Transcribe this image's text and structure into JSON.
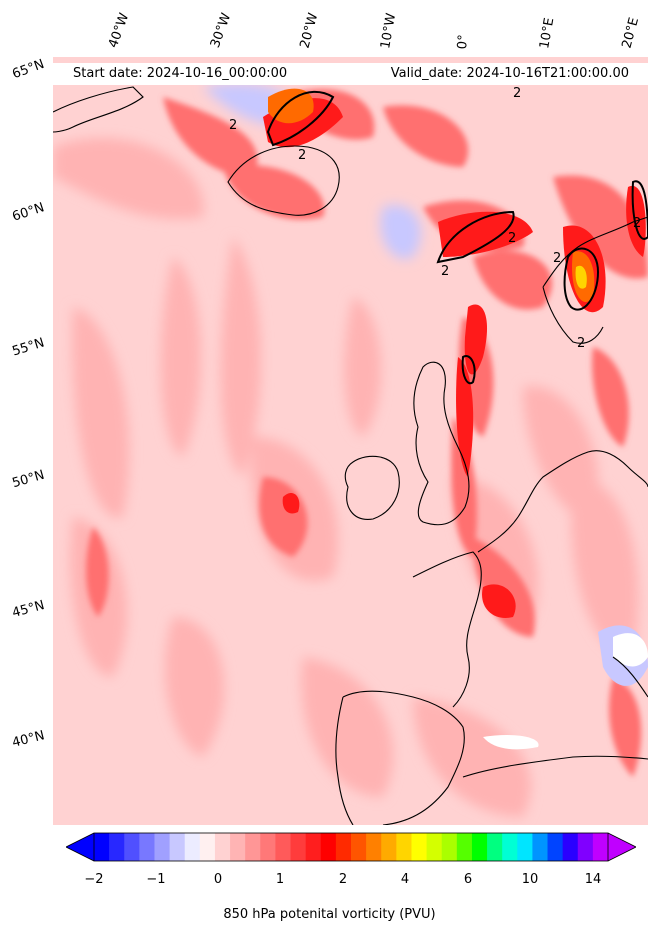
{
  "map": {
    "title_left": "Start date: 2024-10-16_00:00:00",
    "title_right": "Valid_date: 2024-10-16T21:00:00.00",
    "longitude_labels": [
      "40°W",
      "30°W",
      "20°W",
      "10°W",
      "0°",
      "10°E",
      "20°E"
    ],
    "latitude_labels": [
      "65°N",
      "60°N",
      "55°N",
      "50°N",
      "45°N",
      "40°N"
    ],
    "contour_label": "2",
    "field": "850 hPa potential vorticity",
    "colors": {
      "background_field": "#ffd2d2",
      "weak_positive": "#ffb3b3",
      "moderate_positive": "#ff7070",
      "strong_positive": "#ff1a1a",
      "peak": "#ff6a00",
      "extreme": "#ffd400",
      "negative": "#c8c8ff",
      "coastline": "#000000"
    }
  },
  "colorbar": {
    "label": "850 hPa potenital vorticity (PVU)",
    "ticks": [
      "−2",
      "−1",
      "0",
      "1",
      "2",
      "4",
      "6",
      "10",
      "14"
    ],
    "colors": [
      "#0000ff",
      "#2828ff",
      "#5050ff",
      "#7878ff",
      "#a0a0ff",
      "#c8c8ff",
      "#ececff",
      "#fff0f0",
      "#ffd2d2",
      "#ffb4b4",
      "#ff9696",
      "#ff7878",
      "#ff5a5a",
      "#ff3c3c",
      "#ff1e1e",
      "#ff0000",
      "#ff2a00",
      "#ff5500",
      "#ff8000",
      "#ffaa00",
      "#ffd500",
      "#ffff00",
      "#d4ff00",
      "#aaff00",
      "#55ff00",
      "#00ff00",
      "#00ff80",
      "#00ffd4",
      "#00e5ff",
      "#0095ff",
      "#0044ff",
      "#2a00ff",
      "#8000ff",
      "#c000ff"
    ],
    "under_color": "#0000ff",
    "over_color": "#c000ff"
  }
}
